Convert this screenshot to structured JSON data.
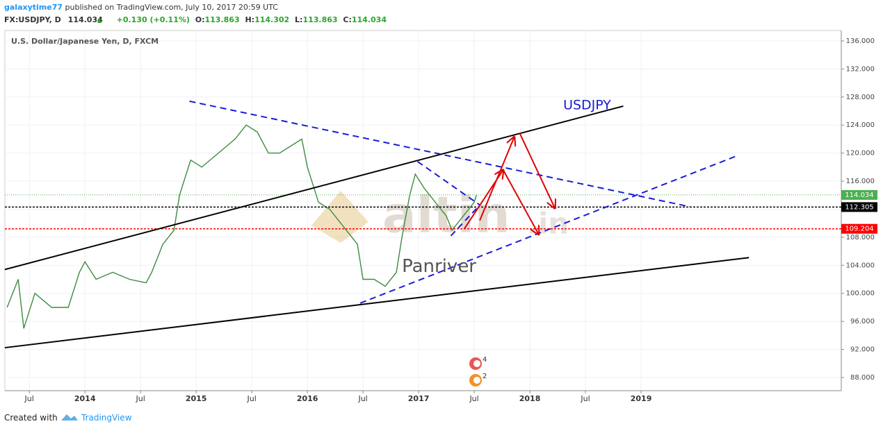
{
  "header": {
    "author": "galaxytime77",
    "published": "published on TradingView.com, July 10, 2017 20:59 UTC",
    "symbol": "FX:USDJPY, D",
    "last": "114.034",
    "change": "+0.130 (+0.11%)",
    "ohlc": [
      {
        "label": "O:",
        "value": 113.863
      },
      {
        "label": "H:",
        "value": 114.302
      },
      {
        "label": "L:",
        "value": 113.863
      },
      {
        "label": "C:",
        "value": 114.034
      }
    ]
  },
  "chart_data": {
    "type": "line",
    "title": "U.S. Dollar/Japanese Yen, D, FXCM",
    "xlim": [
      2013.28,
      2020.8
    ],
    "ylim": [
      86.12,
      137.48
    ],
    "xticks": [
      {
        "value": 2013.5,
        "label": "Jul"
      },
      2014,
      {
        "value": 2014.5,
        "label": "Jul"
      },
      2015,
      {
        "value": 2015.5,
        "label": "Jul"
      },
      2016,
      {
        "value": 2016.5,
        "label": "Jul"
      },
      2017,
      {
        "value": 2017.5,
        "label": "Jul"
      },
      2018,
      {
        "value": 2018.5,
        "label": "Jul"
      },
      2019
    ],
    "yticks": [
      {
        "value": 88,
        "label": "88.000"
      },
      {
        "value": 92,
        "label": "92.000"
      },
      {
        "value": 96,
        "label": "96.000"
      },
      {
        "value": 100,
        "label": "100.000"
      },
      {
        "value": 104,
        "label": "104.000"
      },
      {
        "value": 108,
        "label": "108.000"
      },
      {
        "value": 112,
        "label": "112.000"
      },
      {
        "value": 116,
        "label": "116.000"
      },
      {
        "value": 120,
        "label": "120.000"
      },
      {
        "value": 124,
        "label": "124.000"
      },
      {
        "value": 128,
        "label": "128.000"
      },
      {
        "value": 132,
        "label": "132.000"
      },
      {
        "value": 136,
        "label": "136.000"
      }
    ],
    "grid": true,
    "series": [
      {
        "name": "USDJPY",
        "color": "#3d8b3d",
        "x": [
          2013.3,
          2013.4,
          2013.45,
          2013.55,
          2013.7,
          2013.85,
          2013.95,
          2014.0,
          2014.1,
          2014.25,
          2014.4,
          2014.55,
          2014.6,
          2014.7,
          2014.8,
          2014.85,
          2014.95,
          2015.05,
          2015.2,
          2015.35,
          2015.45,
          2015.55,
          2015.65,
          2015.75,
          2015.85,
          2015.95,
          2016.0,
          2016.1,
          2016.2,
          2016.35,
          2016.45,
          2016.5,
          2016.6,
          2016.7,
          2016.8,
          2016.85,
          2016.92,
          2016.97,
          2017.05,
          2017.15,
          2017.25,
          2017.3,
          2017.4,
          2017.45,
          2017.5,
          2017.52
        ],
        "values": [
          98,
          102,
          95,
          100,
          98,
          98,
          103,
          104.5,
          102,
          103,
          102,
          101.5,
          103,
          107,
          109,
          114,
          119,
          118,
          120,
          122,
          124,
          123,
          120,
          120,
          121,
          122,
          118,
          113,
          112,
          109,
          107,
          102,
          102,
          101,
          103,
          108,
          114,
          117,
          115,
          113,
          111,
          109,
          111,
          112,
          113,
          114.034
        ]
      }
    ],
    "last_price": {
      "value": 114.034,
      "label": "114.034",
      "color": "#4caf50"
    },
    "horizontal_lines": [
      {
        "value": 112.305,
        "label": "112.305",
        "color": "#000000"
      },
      {
        "value": 109.204,
        "label": "109.204",
        "color": "#ff0000"
      }
    ],
    "trend_lines": [
      {
        "x": [
          2013.28,
          2018.84
        ],
        "y": [
          103.4,
          126.7
        ],
        "color": "#000000",
        "dashed": false
      },
      {
        "x": [
          2013.28,
          2019.97
        ],
        "y": [
          92.25,
          105.1
        ],
        "color": "#000000",
        "dashed": false
      },
      {
        "x": [
          2014.94,
          2019.44
        ],
        "y": [
          127.4,
          112.35
        ],
        "color": "#1a1ad6",
        "dashed": true
      },
      {
        "x": [
          2016.475,
          2019.86
        ],
        "y": [
          98.6,
          119.6
        ],
        "color": "#1a1ad6",
        "dashed": true
      },
      {
        "x": [
          2016.99,
          2017.55
        ],
        "y": [
          118.8,
          112.6
        ],
        "color": "#1a1ad6",
        "dashed": true
      },
      {
        "x": [
          2017.29,
          2017.55
        ],
        "y": [
          108.2,
          112.6
        ],
        "color": "#1a1ad6",
        "dashed": true
      }
    ],
    "arrows": [
      {
        "x": [
          2017.41,
          2017.76
        ],
        "y": [
          109.18,
          117.6
        ],
        "color": "#e00000"
      },
      {
        "x": [
          2017.76,
          2018.08
        ],
        "y": [
          117.6,
          108.4
        ],
        "color": "#e00000"
      },
      {
        "x": [
          2017.55,
          2017.86
        ],
        "y": [
          110.4,
          122.3
        ],
        "color": "#e00000"
      },
      {
        "x": [
          2017.91,
          2018.225
        ],
        "y": [
          122.8,
          112.15
        ],
        "color": "#e00000"
      }
    ],
    "annotations": [
      {
        "text": "USDJPY",
        "x": 2018.3,
        "y": 126.8,
        "color": "#1a1ad6"
      },
      {
        "text": "Panriver",
        "x": 2016.85,
        "y": 103.8,
        "color": "#555555"
      }
    ],
    "events": [
      "4",
      "2"
    ]
  },
  "watermark": {
    "main": "altin",
    "suffix": ".in"
  },
  "footer": {
    "created": "Created with",
    "brand": "TradingView"
  }
}
